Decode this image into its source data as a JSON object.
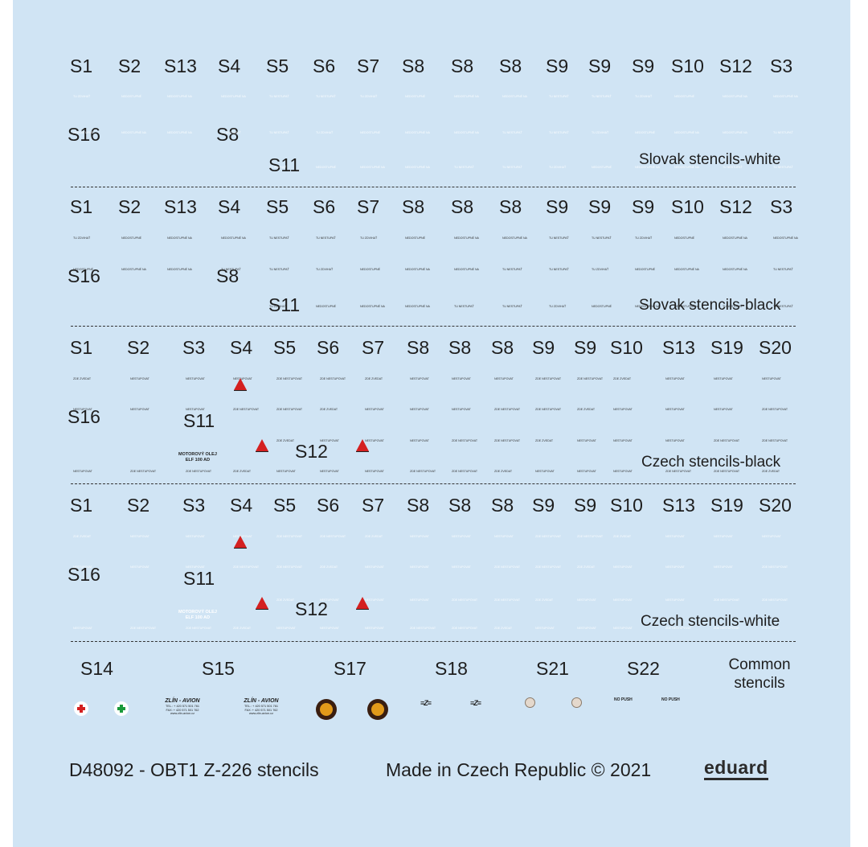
{
  "sections": [
    {
      "id": "slovak-white",
      "title": "Slovak stencils-white",
      "row1": [
        "S1",
        "S2",
        "S13",
        "S4",
        "S5",
        "S6",
        "S7",
        "S8",
        "S8",
        "S8",
        "S9",
        "S9",
        "S9",
        "S10",
        "S12",
        "S3"
      ],
      "extra": [
        "S16",
        "S8",
        "S11"
      ]
    },
    {
      "id": "slovak-black",
      "title": "Slovak stencils-black",
      "row1": [
        "S1",
        "S2",
        "S13",
        "S4",
        "S5",
        "S6",
        "S7",
        "S8",
        "S8",
        "S8",
        "S9",
        "S9",
        "S9",
        "S10",
        "S12",
        "S3"
      ],
      "extra": [
        "S16",
        "S8",
        "S11"
      ]
    },
    {
      "id": "czech-black",
      "title": "Czech stencils-black",
      "row1": [
        "S1",
        "S2",
        "S3",
        "S4",
        "S5",
        "S6",
        "S7",
        "S8",
        "S8",
        "S8",
        "S9",
        "S9",
        "S10",
        "S13",
        "S19",
        "S20"
      ],
      "extra": [
        "S16",
        "S11",
        "S12"
      ],
      "oil_text": "MOTOROVÝ OLEJ\nELF 100 AD"
    },
    {
      "id": "czech-white",
      "title": "Czech stencils-white",
      "row1": [
        "S1",
        "S2",
        "S3",
        "S4",
        "S5",
        "S6",
        "S7",
        "S8",
        "S8",
        "S8",
        "S9",
        "S9",
        "S10",
        "S13",
        "S19",
        "S20"
      ],
      "extra": [
        "S16",
        "S11",
        "S12"
      ],
      "oil_text": "MOTOROVÝ OLEJ\nELF 100 AD"
    }
  ],
  "slovak_micro": [
    "TU ZDVIHAŤ",
    "NEDOSTUPNÉ",
    "NEDOSTUPNÉ NA",
    "NEDOSTUPNÉ NA",
    "TU NESTUPAŤ",
    "TU NESTUPAŤ"
  ],
  "czech_micro": [
    "ZDE ZVEDAT",
    "NESTUPOVAT",
    "NESTUPOVAT",
    "NESTUPOVAT",
    "ZDE NESTUPOVAT",
    "ZDE NESTUPOVAT"
  ],
  "common": {
    "labels": [
      "S14",
      "S15",
      "S17",
      "S18",
      "S21",
      "S22"
    ],
    "title": "Common\nstencils",
    "zlin_title": "ZLÍN - AVION",
    "zlin_sub": "TEL.: + 420 571 501 761\nFAX: + 420 571 501 762\nwww.zlin-avion.cz",
    "no_push": "NO PUSH",
    "colors": {
      "red_cross": "#d42020",
      "green_cross": "#1a9a3a"
    }
  },
  "footer": {
    "code": "D48092 - OBT1 Z-226 stencils",
    "made_in": "Made in Czech Republic © 2021",
    "brand": "eduard"
  },
  "colors": {
    "sheet": "#d0e4f4",
    "text": "#1e1e1e",
    "triangle": "#d42020"
  }
}
